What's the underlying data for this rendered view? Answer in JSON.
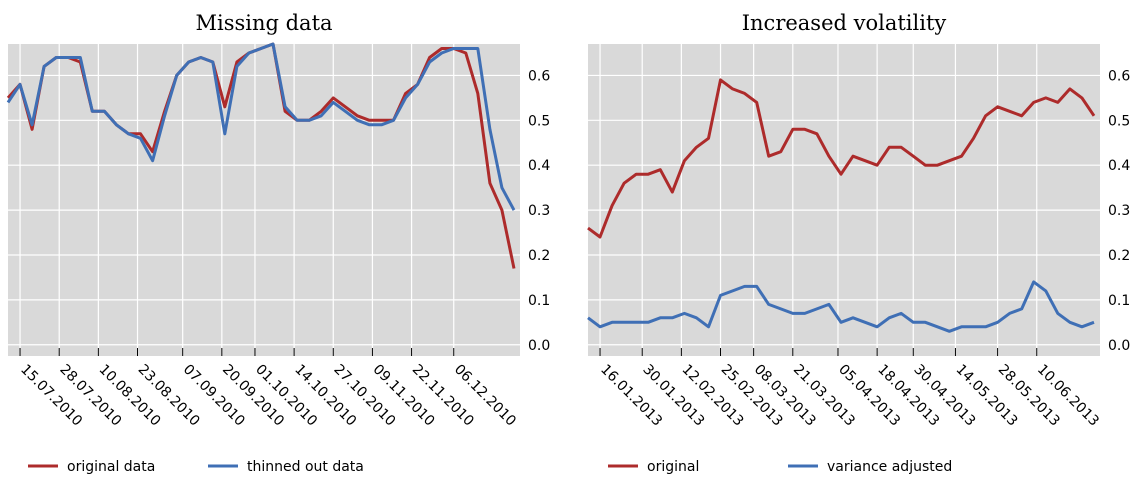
{
  "chart_data": [
    {
      "type": "line",
      "title": "Missing data",
      "x": [
        "11.07.2010",
        "15.07.2010",
        "19.07.2010",
        "23.07.2010",
        "27.07.2010",
        "31.07.2010",
        "04.08.2010",
        "08.08.2010",
        "12.08.2010",
        "16.08.2010",
        "20.08.2010",
        "24.08.2010",
        "28.08.2010",
        "01.09.2010",
        "05.09.2010",
        "09.09.2010",
        "13.09.2010",
        "17.09.2010",
        "21.09.2010",
        "25.09.2010",
        "29.09.2010",
        "03.10.2010",
        "07.10.2010",
        "11.10.2010",
        "15.10.2010",
        "19.10.2010",
        "23.10.2010",
        "27.10.2010",
        "31.10.2010",
        "04.11.2010",
        "08.11.2010",
        "12.11.2010",
        "16.11.2010",
        "20.11.2010",
        "24.11.2010",
        "28.11.2010",
        "02.12.2010",
        "06.12.2010",
        "10.12.2010",
        "14.12.2010",
        "18.12.2010",
        "22.12.2010",
        "26.12.2010"
      ],
      "xlim": [
        "11.07.2010",
        "28.12.2010"
      ],
      "xticks": [
        "15.07.2010",
        "28.07.2010",
        "10.08.2010",
        "23.08.2010",
        "07.09.2010",
        "20.09.2010",
        "01.10.2010",
        "14.10.2010",
        "27.10.2010",
        "09.11.2010",
        "22.11.2010",
        "06.12.2010"
      ],
      "ylim": [
        -0.025,
        0.67
      ],
      "yticks": [
        {
          "value": 0,
          "label": "0.0"
        },
        0.1,
        0.2,
        0.3,
        0.4,
        0.5,
        0.6
      ],
      "grid": true,
      "legend": "bottom-left",
      "series": [
        {
          "name": "original data",
          "color": "#ad2b2b",
          "values": [
            0.55,
            0.58,
            0.48,
            0.62,
            0.64,
            0.64,
            0.63,
            0.52,
            0.52,
            0.49,
            0.47,
            0.47,
            0.43,
            0.52,
            0.6,
            0.63,
            0.64,
            0.63,
            0.53,
            0.63,
            0.65,
            0.66,
            0.67,
            0.52,
            0.5,
            0.5,
            0.52,
            0.55,
            0.53,
            0.51,
            0.5,
            0.5,
            0.5,
            0.56,
            0.58,
            0.64,
            0.66,
            0.66,
            0.65,
            0.56,
            0.36,
            0.3,
            0.17
          ]
        },
        {
          "name": "thinned out data",
          "color": "#3f6fb5",
          "values": [
            0.54,
            0.58,
            0.49,
            0.62,
            0.64,
            0.64,
            0.64,
            0.52,
            0.52,
            0.49,
            0.47,
            0.46,
            0.41,
            0.51,
            0.6,
            0.63,
            0.64,
            0.63,
            0.47,
            0.62,
            0.65,
            0.66,
            0.67,
            0.53,
            0.5,
            0.5,
            0.51,
            0.54,
            0.52,
            0.5,
            0.49,
            0.49,
            0.5,
            0.55,
            0.58,
            0.63,
            0.65,
            0.66,
            0.66,
            0.66,
            0.48,
            0.35,
            0.3
          ]
        }
      ]
    },
    {
      "type": "line",
      "title": "Increased volatility",
      "x": [
        "12.01.2013",
        "16.01.2013",
        "20.01.2013",
        "24.01.2013",
        "28.01.2013",
        "01.02.2013",
        "05.02.2013",
        "09.02.2013",
        "13.02.2013",
        "17.02.2013",
        "21.02.2013",
        "25.02.2013",
        "01.03.2013",
        "05.03.2013",
        "09.03.2013",
        "13.03.2013",
        "17.03.2013",
        "21.03.2013",
        "25.03.2013",
        "29.03.2013",
        "02.04.2013",
        "06.04.2013",
        "10.04.2013",
        "14.04.2013",
        "18.04.2013",
        "22.04.2013",
        "26.04.2013",
        "30.04.2013",
        "04.05.2013",
        "08.05.2013",
        "12.05.2013",
        "16.05.2013",
        "20.05.2013",
        "24.05.2013",
        "28.05.2013",
        "01.06.2013",
        "05.06.2013",
        "09.06.2013",
        "13.06.2013",
        "17.06.2013",
        "21.06.2013",
        "25.06.2013",
        "29.06.2013"
      ],
      "xlim": [
        "12.01.2013",
        "01.07.2013"
      ],
      "xticks": [
        "16.01.2013",
        "30.01.2013",
        "12.02.2013",
        "25.02.2013",
        "08.03.2013",
        "21.03.2013",
        "05.04.2013",
        "18.04.2013",
        "30.04.2013",
        "14.05.2013",
        "28.05.2013",
        "10.06.2013"
      ],
      "ylim": [
        -0.025,
        0.67
      ],
      "yticks": [
        {
          "value": 0,
          "label": "0.0"
        },
        0.1,
        0.2,
        0.3,
        0.4,
        0.5,
        0.6
      ],
      "grid": true,
      "legend": "bottom-left",
      "series": [
        {
          "name": "original",
          "color": "#ad2b2b",
          "values": [
            0.26,
            0.24,
            0.31,
            0.36,
            0.38,
            0.38,
            0.39,
            0.34,
            0.41,
            0.44,
            0.46,
            0.59,
            0.57,
            0.56,
            0.54,
            0.42,
            0.43,
            0.48,
            0.48,
            0.47,
            0.42,
            0.38,
            0.42,
            0.41,
            0.4,
            0.44,
            0.44,
            0.42,
            0.4,
            0.4,
            0.41,
            0.42,
            0.46,
            0.51,
            0.53,
            0.52,
            0.51,
            0.54,
            0.55,
            0.54,
            0.57,
            0.55,
            0.51
          ]
        },
        {
          "name": "variance adjusted",
          "color": "#3f6fb5",
          "values": [
            0.06,
            0.04,
            0.05,
            0.05,
            0.05,
            0.05,
            0.06,
            0.06,
            0.07,
            0.06,
            0.04,
            0.11,
            0.12,
            0.13,
            0.13,
            0.09,
            0.08,
            0.07,
            0.07,
            0.08,
            0.09,
            0.05,
            0.06,
            0.05,
            0.04,
            0.06,
            0.07,
            0.05,
            0.05,
            0.04,
            0.03,
            0.04,
            0.04,
            0.04,
            0.05,
            0.07,
            0.08,
            0.14,
            0.12,
            0.07,
            0.05,
            0.04,
            0.05
          ]
        }
      ]
    }
  ]
}
